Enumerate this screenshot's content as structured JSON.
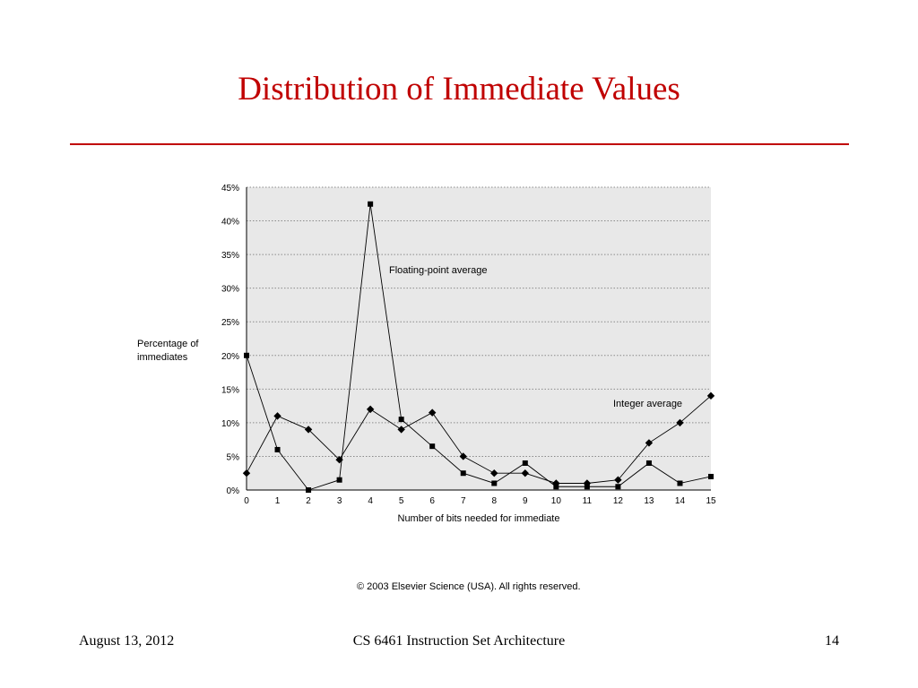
{
  "slide": {
    "title": "Distribution of Immediate Values",
    "copyright": "© 2003 Elsevier Science (USA). All rights reserved.",
    "footer": {
      "date": "August 13, 2012",
      "course": "CS 6461 Instruction Set Architecture",
      "page": "14"
    }
  },
  "chart_data": {
    "type": "line",
    "title": "",
    "xlabel": "Number of bits needed for immediate",
    "ylabel": [
      "Percentage of",
      "immediates"
    ],
    "x": [
      0,
      1,
      2,
      3,
      4,
      5,
      6,
      7,
      8,
      9,
      10,
      11,
      12,
      13,
      14,
      15
    ],
    "xlim": [
      0,
      15
    ],
    "ylim": [
      0,
      45
    ],
    "yticks": [
      0,
      5,
      10,
      15,
      20,
      25,
      30,
      35,
      40,
      45
    ],
    "ytick_labels": [
      "0%",
      "5%",
      "10%",
      "15%",
      "20%",
      "25%",
      "30%",
      "35%",
      "40%",
      "45%"
    ],
    "grid": true,
    "plot_background": "#e8e8e8",
    "series": [
      {
        "name": "Floating-point average",
        "marker": "square",
        "color": "#000000",
        "values": [
          20,
          6,
          0,
          1.5,
          42.5,
          10.5,
          6.5,
          2.5,
          1,
          4,
          0.5,
          0.5,
          0.5,
          4,
          1,
          2
        ]
      },
      {
        "name": "Integer average",
        "marker": "diamond",
        "color": "#000000",
        "values": [
          2.5,
          11,
          9,
          4.5,
          12,
          9,
          11.5,
          5,
          2.5,
          2.5,
          1,
          1,
          1.5,
          7,
          10,
          14
        ]
      }
    ]
  }
}
